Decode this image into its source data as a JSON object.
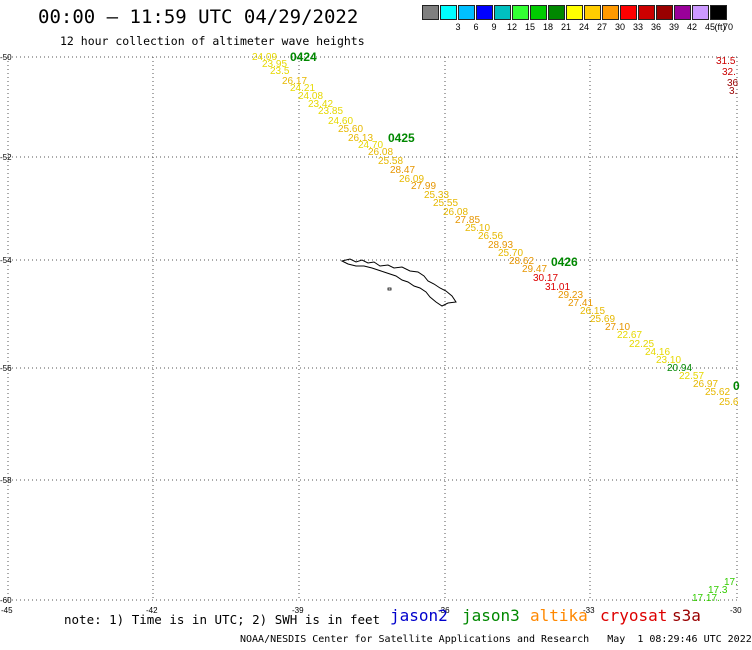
{
  "header": {
    "title": "00:00 – 11:59 UTC 04/29/2022",
    "subtitle": "12 hour collection of altimeter wave heights"
  },
  "scale": {
    "unit": "(ft)",
    "bins": [
      {
        "label": "",
        "color": "#7f7f7f"
      },
      {
        "label": "3",
        "color": "#00ffff"
      },
      {
        "label": "6",
        "color": "#00bfff"
      },
      {
        "label": "9",
        "color": "#0000ff"
      },
      {
        "label": "12",
        "color": "#00bfbf"
      },
      {
        "label": "15",
        "color": "#33ff33"
      },
      {
        "label": "18",
        "color": "#00cc00"
      },
      {
        "label": "21",
        "color": "#008800"
      },
      {
        "label": "24",
        "color": "#ffff00"
      },
      {
        "label": "27",
        "color": "#ffcc00"
      },
      {
        "label": "30",
        "color": "#ff9900"
      },
      {
        "label": "33",
        "color": "#ff0000"
      },
      {
        "label": "36",
        "color": "#cc0000"
      },
      {
        "label": "39",
        "color": "#990000"
      },
      {
        "label": "42",
        "color": "#990099"
      },
      {
        "label": "45",
        "color": "#cc99ff"
      },
      {
        "label": "70",
        "color": "#000000"
      }
    ]
  },
  "axes": {
    "lat_ticks": [
      "-50",
      "-52",
      "-54",
      "-56",
      "-58",
      "-60"
    ],
    "lon_ticks": [
      "-45",
      "-42",
      "-39",
      "-36",
      "-33",
      "-30"
    ]
  },
  "passes": [
    {
      "label": "0424",
      "color": "#008800"
    },
    {
      "label": "0425",
      "color": "#008800"
    },
    {
      "label": "0426",
      "color": "#008800"
    }
  ],
  "readings": [
    {
      "text": "24.09",
      "color": "#e6d800"
    },
    {
      "text": "23.95",
      "color": "#e6d800"
    },
    {
      "text": "23.5",
      "color": "#e6d800"
    },
    {
      "text": "26.17",
      "color": "#e6b800"
    },
    {
      "text": "24.21",
      "color": "#e6d800"
    },
    {
      "text": "24.08",
      "color": "#e6d800"
    },
    {
      "text": "23.42",
      "color": "#e6d800"
    },
    {
      "text": "23.85",
      "color": "#e6d800"
    },
    {
      "text": "24.60",
      "color": "#e6d800"
    },
    {
      "text": "25.60",
      "color": "#e6b800"
    },
    {
      "text": "26.13",
      "color": "#e6b800"
    },
    {
      "text": "24.70",
      "color": "#e6d800"
    },
    {
      "text": "26.08",
      "color": "#e6b800"
    },
    {
      "text": "25.58",
      "color": "#e6b800"
    },
    {
      "text": "28.47",
      "color": "#e69500"
    },
    {
      "text": "26.09",
      "color": "#e6b800"
    },
    {
      "text": "27.99",
      "color": "#e69500"
    },
    {
      "text": "25.33",
      "color": "#e6b800"
    },
    {
      "text": "25.55",
      "color": "#e6b800"
    },
    {
      "text": "26.08",
      "color": "#e6b800"
    },
    {
      "text": "27.85",
      "color": "#e69500"
    },
    {
      "text": "25.10",
      "color": "#e6b800"
    },
    {
      "text": "26.56",
      "color": "#e6b800"
    },
    {
      "text": "28.93",
      "color": "#e69500"
    },
    {
      "text": "25.70",
      "color": "#e6b800"
    },
    {
      "text": "28.62",
      "color": "#e69500"
    },
    {
      "text": "29.47",
      "color": "#e69500"
    },
    {
      "text": "30.17",
      "color": "#dd0000"
    },
    {
      "text": "31.01",
      "color": "#dd0000"
    },
    {
      "text": "29.23",
      "color": "#e69500"
    },
    {
      "text": "27.41",
      "color": "#e69500"
    },
    {
      "text": "26.15",
      "color": "#e6b800"
    },
    {
      "text": "25.69",
      "color": "#e6b800"
    },
    {
      "text": "27.10",
      "color": "#e69500"
    },
    {
      "text": "22.67",
      "color": "#e6d800"
    },
    {
      "text": "22.25",
      "color": "#e6d800"
    },
    {
      "text": "24.16",
      "color": "#e6d800"
    },
    {
      "text": "23.10",
      "color": "#e6d800"
    },
    {
      "text": "20.94",
      "color": "#008800"
    },
    {
      "text": "22.57",
      "color": "#e6d800"
    },
    {
      "text": "26.97",
      "color": "#e6b800"
    },
    {
      "text": "25.62",
      "color": "#e6b800"
    },
    {
      "text": "25.6",
      "color": "#e6b800"
    }
  ],
  "edge_readings_right_top": [
    {
      "text": "31.5",
      "color": "#cc0000"
    },
    {
      "text": "32.",
      "color": "#cc0000"
    },
    {
      "text": "36",
      "color": "#990000"
    },
    {
      "text": "3.",
      "color": "#990000"
    }
  ],
  "edge_readings_right_bottom": [
    {
      "text": "17.",
      "color": "#33cc00"
    },
    {
      "text": "17.3",
      "color": "#33cc00"
    },
    {
      "text": "17.17.",
      "color": "#33cc00"
    }
  ],
  "edge_pass_right": {
    "text": "0",
    "color": "#008800"
  },
  "footer": {
    "note": "note: 1) Time is in UTC; 2) SWH is in feet",
    "satellites": [
      {
        "name": "jason2",
        "color": "#0000cc"
      },
      {
        "name": "jason3",
        "color": "#008800"
      },
      {
        "name": "altika",
        "color": "#ff8800"
      },
      {
        "name": "cryosat",
        "color": "#dd0000"
      },
      {
        "name": "s3a",
        "color": "#990000"
      }
    ],
    "credit": "NOAA/NESDIS Center for Satellite Applications and Research   May  1 08:29:46 UTC 2022"
  }
}
